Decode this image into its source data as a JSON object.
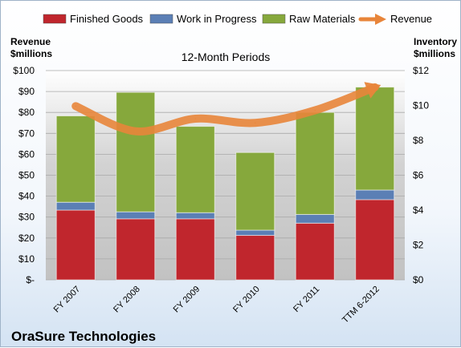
{
  "chart_data": {
    "type": "bar",
    "title": "12-Month Periods",
    "company": "OraSure Technologies",
    "left_axis_title": [
      "Revenue",
      "$millions"
    ],
    "right_axis_title": [
      "Inventory",
      "$millions"
    ],
    "categories": [
      "FY 2007",
      "FY 2008",
      "FY 2009",
      "FY 2010",
      "FY 2011",
      "TTM 6-2012"
    ],
    "left_axis": {
      "min": 0,
      "max": 100,
      "step": 10,
      "ticks": [
        "$-",
        "$10",
        "$20",
        "$30",
        "$40",
        "$50",
        "$60",
        "$70",
        "$80",
        "$90",
        "$100"
      ]
    },
    "right_axis": {
      "min": 0,
      "max": 12,
      "step": 2,
      "ticks": [
        "$0",
        "$2",
        "$4",
        "$6",
        "$8",
        "$10",
        "$12"
      ]
    },
    "series": [
      {
        "name": "Finished Goods",
        "axis": "right",
        "kind": "stacked-bar",
        "color": "#c0262d",
        "values": [
          4.0,
          3.5,
          3.5,
          2.55,
          3.25,
          4.6
        ]
      },
      {
        "name": "Work in Progress",
        "axis": "right",
        "kind": "stacked-bar",
        "color": "#5b7fb5",
        "values": [
          0.45,
          0.4,
          0.35,
          0.3,
          0.5,
          0.55
        ]
      },
      {
        "name": "Raw Materials",
        "axis": "right",
        "kind": "stacked-bar",
        "color": "#86a83c",
        "values": [
          4.95,
          6.85,
          4.95,
          4.45,
          5.85,
          5.9
        ]
      },
      {
        "name": "Revenue",
        "axis": "left",
        "kind": "line",
        "color": "#e8853a",
        "values": [
          83,
          71,
          77,
          75,
          81,
          92
        ]
      }
    ],
    "legend_position": "top",
    "grid": true
  }
}
